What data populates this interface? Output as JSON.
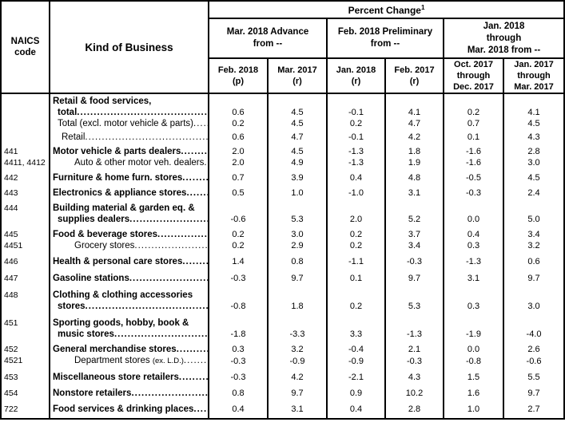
{
  "header": {
    "naics_label_line1": "NAICS",
    "naics_label_line2": "code",
    "kob_label": "Kind of Business",
    "percent_change": "Percent Change",
    "percent_change_sup": "1",
    "groups": [
      {
        "lines": [
          "Mar. 2018 Advance",
          "from --"
        ]
      },
      {
        "lines": [
          "Feb. 2018 Preliminary",
          "from --"
        ]
      },
      {
        "lines": [
          "Jan. 2018",
          "through",
          "Mar. 2018 from --"
        ]
      }
    ],
    "subcols": [
      {
        "lines": [
          "Feb. 2018",
          "(p)"
        ]
      },
      {
        "lines": [
          "Mar. 2017",
          "(r)"
        ]
      },
      {
        "lines": [
          "Jan. 2018",
          "(r)"
        ]
      },
      {
        "lines": [
          "Feb. 2017",
          "(r)"
        ]
      },
      {
        "lines": [
          "Oct. 2017",
          "through",
          "Dec. 2017"
        ]
      },
      {
        "lines": [
          "Jan. 2017",
          "through",
          "Mar. 2017"
        ]
      }
    ]
  },
  "rows": [
    {
      "code": "",
      "lines": [
        "Retail & food services,",
        "total"
      ],
      "bold": true,
      "indent": 0,
      "gap": 2,
      "values": [
        "0.6",
        "4.5",
        "-0.1",
        "4.1",
        "0.2",
        "4.1"
      ]
    },
    {
      "code": "",
      "lines": [
        "Total (excl. motor vehicle & parts)"
      ],
      "bold": false,
      "indent": 1,
      "gap": 0,
      "values": [
        "0.2",
        "4.5",
        "0.2",
        "4.7",
        "0.7",
        "4.5"
      ]
    },
    {
      "code": "",
      "lines": [
        "Retail"
      ],
      "bold": false,
      "indent": 2,
      "gap": 3,
      "values": [
        "0.6",
        "4.7",
        "-0.1",
        "4.2",
        "0.1",
        "4.3"
      ]
    },
    {
      "code": "441",
      "lines": [
        "Motor vehicle & parts dealers"
      ],
      "bold": true,
      "indent": 0,
      "gap": 4,
      "values": [
        "2.0",
        "4.5",
        "-1.3",
        "1.8",
        "-1.6",
        "2.8"
      ]
    },
    {
      "code": "4411, 4412",
      "lines": [
        "Auto & other motor veh. dealers"
      ],
      "bold": false,
      "indent": 3,
      "gap": 0,
      "values": [
        "2.0",
        "4.9",
        "-1.3",
        "1.9",
        "-1.6",
        "3.0"
      ]
    },
    {
      "code": "442",
      "lines": [
        "Furniture & home furn. stores"
      ],
      "bold": true,
      "indent": 0,
      "gap": 5,
      "values": [
        "0.7",
        "3.9",
        "0.4",
        "4.8",
        "-0.5",
        "4.5"
      ]
    },
    {
      "code": "443",
      "lines": [
        "Electronics & appliance stores"
      ],
      "bold": true,
      "indent": 0,
      "gap": 5,
      "values": [
        "0.5",
        "1.0",
        "-1.0",
        "3.1",
        "-0.3",
        "2.4"
      ]
    },
    {
      "code": "444",
      "lines": [
        "Building material & garden eq. &",
        "supplies dealers"
      ],
      "bold": true,
      "indent": 0,
      "gap": 5,
      "values": [
        "-0.6",
        "5.3",
        "2.0",
        "5.2",
        "0.0",
        "5.0"
      ]
    },
    {
      "code": "445",
      "lines": [
        "Food & beverage stores"
      ],
      "bold": true,
      "indent": 0,
      "gap": 5,
      "values": [
        "0.2",
        "3.0",
        "0.2",
        "3.7",
        "0.4",
        "3.4"
      ]
    },
    {
      "code": "4451",
      "lines": [
        "Grocery stores"
      ],
      "bold": false,
      "indent": 3,
      "gap": 0,
      "values": [
        "0.2",
        "2.9",
        "0.2",
        "3.4",
        "0.3",
        "3.2"
      ]
    },
    {
      "code": "446",
      "lines": [
        "Health & personal care stores"
      ],
      "bold": true,
      "indent": 0,
      "gap": 6,
      "values": [
        "1.4",
        "0.8",
        "-1.1",
        "-0.3",
        "-1.3",
        "0.6"
      ]
    },
    {
      "code": "447",
      "lines": [
        "Gasoline stations"
      ],
      "bold": true,
      "indent": 0,
      "gap": 7,
      "values": [
        "-0.3",
        "9.7",
        "0.1",
        "9.7",
        "3.1",
        "9.7"
      ]
    },
    {
      "code": "448",
      "lines": [
        "Clothing & clothing accessories",
        "stores"
      ],
      "bold": true,
      "indent": 0,
      "gap": 7,
      "values": [
        "-0.8",
        "1.8",
        "0.2",
        "5.3",
        "0.3",
        "3.0"
      ]
    },
    {
      "code": "451",
      "lines": [
        "Sporting goods, hobby, book &",
        "music stores"
      ],
      "bold": true,
      "indent": 0,
      "gap": 7,
      "values": [
        "-1.8",
        "-3.3",
        "3.3",
        "-1.3",
        "-1.9",
        "-4.0"
      ]
    },
    {
      "code": "452",
      "lines": [
        "General merchandise stores"
      ],
      "bold": true,
      "indent": 0,
      "gap": 5,
      "values": [
        "0.3",
        "3.2",
        "-0.4",
        "2.1",
        "0.0",
        "2.6"
      ]
    },
    {
      "code": "4521",
      "lines": [
        "Department stores"
      ],
      "small_suffix": "(ex. L.D.)",
      "bold": false,
      "indent": 3,
      "gap": 0,
      "values": [
        "-0.3",
        "-0.9",
        "-0.9",
        "-0.3",
        "-0.8",
        "-0.6"
      ]
    },
    {
      "code": "453",
      "lines": [
        "Miscellaneous store retailers"
      ],
      "bold": true,
      "indent": 0,
      "gap": 6,
      "values": [
        "-0.3",
        "4.2",
        "-2.1",
        "4.3",
        "1.5",
        "5.5"
      ]
    },
    {
      "code": "454",
      "lines": [
        "Nonstore retailers"
      ],
      "bold": true,
      "indent": 0,
      "gap": 6,
      "values": [
        "0.8",
        "9.7",
        "0.9",
        "10.2",
        "1.6",
        "9.7"
      ]
    },
    {
      "code": "722",
      "lines": [
        "Food services & drinking places"
      ],
      "bold": true,
      "indent": 0,
      "gap": 6,
      "values": [
        "0.4",
        "3.1",
        "0.4",
        "2.8",
        "1.0",
        "2.7"
      ]
    }
  ]
}
